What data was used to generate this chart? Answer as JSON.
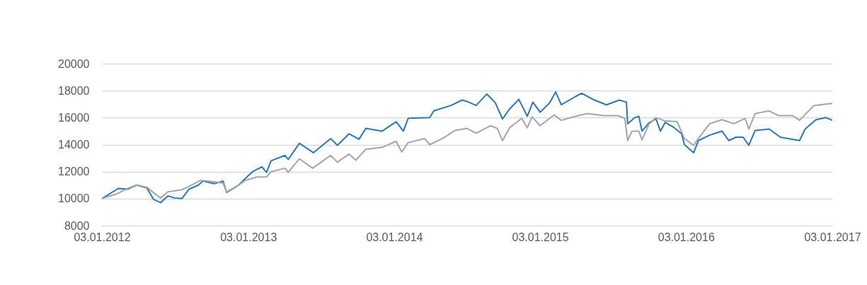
{
  "chart_data": {
    "type": "line",
    "xlim": [
      "2012-01-03",
      "2017-01-03"
    ],
    "xticks": [
      {
        "value": "2012-01-03",
        "label": "03.01.2012"
      },
      {
        "value": "2013-01-03",
        "label": "03.01.2013"
      },
      {
        "value": "2014-01-03",
        "label": "03.01.2014"
      },
      {
        "value": "2015-01-03",
        "label": "03.01.2015"
      },
      {
        "value": "2016-01-03",
        "label": "03.01.2016"
      },
      {
        "value": "2017-01-03",
        "label": "03.01.2017"
      }
    ],
    "ylim": [
      8000,
      20000
    ],
    "yticks": [
      8000,
      10000,
      12000,
      14000,
      16000,
      18000,
      20000
    ],
    "grid": "y",
    "line_style": "solid",
    "marker": "none",
    "series": [
      {
        "color": "#2e75b6",
        "x": [
          "2012-01-03",
          "2012-02-13",
          "2012-03-07",
          "2012-03-30",
          "2012-04-24",
          "2012-05-11",
          "2012-05-29",
          "2012-06-16",
          "2012-07-03",
          "2012-07-21",
          "2012-08-08",
          "2012-08-31",
          "2012-09-12",
          "2012-10-10",
          "2012-11-01",
          "2012-11-10",
          "2012-12-10",
          "2012-12-27",
          "2013-01-14",
          "2013-02-06",
          "2013-02-18",
          "2013-03-01",
          "2013-04-05",
          "2013-04-13",
          "2013-05-11",
          "2013-06-15",
          "2013-07-28",
          "2013-08-14",
          "2013-09-12",
          "2013-10-07",
          "2013-10-24",
          "2013-12-04",
          "2014-01-08",
          "2014-01-26",
          "2014-02-07",
          "2014-04-02",
          "2014-04-12",
          "2014-05-25",
          "2014-06-22",
          "2014-07-04",
          "2014-07-27",
          "2014-08-23",
          "2014-09-13",
          "2014-10-01",
          "2014-10-19",
          "2014-11-11",
          "2014-12-02",
          "2014-12-16",
          "2015-01-03",
          "2015-01-27",
          "2015-02-11",
          "2015-02-25",
          "2015-04-01",
          "2015-04-17",
          "2015-05-19",
          "2015-06-18",
          "2015-07-20",
          "2015-08-07",
          "2015-08-10",
          "2015-08-28",
          "2015-09-07",
          "2015-09-15",
          "2015-10-02",
          "2015-10-20",
          "2015-10-31",
          "2015-11-12",
          "2015-12-05",
          "2015-12-23",
          "2015-12-30",
          "2016-01-22",
          "2016-02-03",
          "2016-03-02",
          "2016-04-02",
          "2016-04-19",
          "2016-05-07",
          "2016-05-25",
          "2016-06-08",
          "2016-06-24",
          "2016-07-29",
          "2016-08-26",
          "2016-10-13",
          "2016-10-27",
          "2016-11-23",
          "2016-12-18",
          "2017-01-03"
        ],
        "values": [
          10000,
          10750,
          10700,
          11000,
          10800,
          9950,
          9700,
          10200,
          10050,
          10000,
          10700,
          11000,
          11300,
          11100,
          11300,
          10450,
          11000,
          11500,
          12000,
          12350,
          11950,
          12800,
          13200,
          12900,
          14100,
          13400,
          14450,
          13950,
          14800,
          14400,
          15200,
          15000,
          15700,
          15000,
          15950,
          16000,
          16500,
          16900,
          17300,
          17200,
          16900,
          17750,
          17100,
          15900,
          16650,
          17350,
          16100,
          17150,
          16400,
          17100,
          17900,
          16950,
          17550,
          17800,
          17300,
          16950,
          17300,
          17150,
          15550,
          16000,
          16100,
          15000,
          15600,
          15900,
          15000,
          15650,
          15250,
          14800,
          14000,
          13400,
          14300,
          14700,
          15000,
          14300,
          14550,
          14550,
          13950,
          15050,
          15150,
          14550,
          14300,
          15150,
          15850,
          16000,
          15800
        ]
      },
      {
        "color": "#a5a5a5",
        "x": [
          "2012-01-03",
          "2012-02-13",
          "2012-03-07",
          "2012-03-30",
          "2012-04-24",
          "2012-05-17",
          "2012-05-29",
          "2012-06-16",
          "2012-07-21",
          "2012-08-08",
          "2012-09-05",
          "2012-10-10",
          "2012-11-01",
          "2012-11-10",
          "2012-12-10",
          "2012-12-27",
          "2013-01-25",
          "2013-02-18",
          "2013-03-01",
          "2013-04-05",
          "2013-04-13",
          "2013-05-11",
          "2013-06-13",
          "2013-07-28",
          "2013-08-14",
          "2013-09-12",
          "2013-09-29",
          "2013-10-24",
          "2013-12-04",
          "2014-01-08",
          "2014-01-22",
          "2014-02-07",
          "2014-03-20",
          "2014-04-02",
          "2014-05-07",
          "2014-06-04",
          "2014-07-04",
          "2014-07-27",
          "2014-09-01",
          "2014-09-18",
          "2014-10-01",
          "2014-10-19",
          "2014-11-18",
          "2014-12-02",
          "2014-12-14",
          "2015-01-03",
          "2015-02-07",
          "2015-02-25",
          "2015-04-08",
          "2015-05-01",
          "2015-06-11",
          "2015-07-16",
          "2015-08-03",
          "2015-08-10",
          "2015-08-21",
          "2015-09-07",
          "2015-09-15",
          "2015-10-02",
          "2015-10-20",
          "2015-11-12",
          "2015-12-12",
          "2015-12-30",
          "2016-01-22",
          "2016-02-03",
          "2016-03-02",
          "2016-04-02",
          "2016-05-02",
          "2016-05-30",
          "2016-06-08",
          "2016-06-24",
          "2016-07-29",
          "2016-08-21",
          "2016-09-26",
          "2016-10-13",
          "2016-11-18",
          "2016-12-18",
          "2017-01-03"
        ],
        "values": [
          10000,
          10400,
          10750,
          11000,
          10850,
          10300,
          10050,
          10500,
          10650,
          10900,
          11350,
          11250,
          11150,
          10500,
          11000,
          11350,
          11600,
          11600,
          12000,
          12250,
          11950,
          12950,
          12250,
          13200,
          12700,
          13300,
          12850,
          13650,
          13800,
          14250,
          13450,
          14150,
          14450,
          14000,
          14500,
          15050,
          15200,
          14850,
          15400,
          15200,
          14300,
          15250,
          15950,
          15250,
          16050,
          15400,
          16200,
          15800,
          16150,
          16300,
          16150,
          16150,
          15950,
          14300,
          15000,
          15000,
          14350,
          15500,
          16000,
          15750,
          15700,
          14450,
          13950,
          14450,
          15550,
          15850,
          15550,
          15950,
          15150,
          16300,
          16500,
          16150,
          16150,
          15800,
          16900,
          17000,
          17050
        ]
      }
    ]
  }
}
